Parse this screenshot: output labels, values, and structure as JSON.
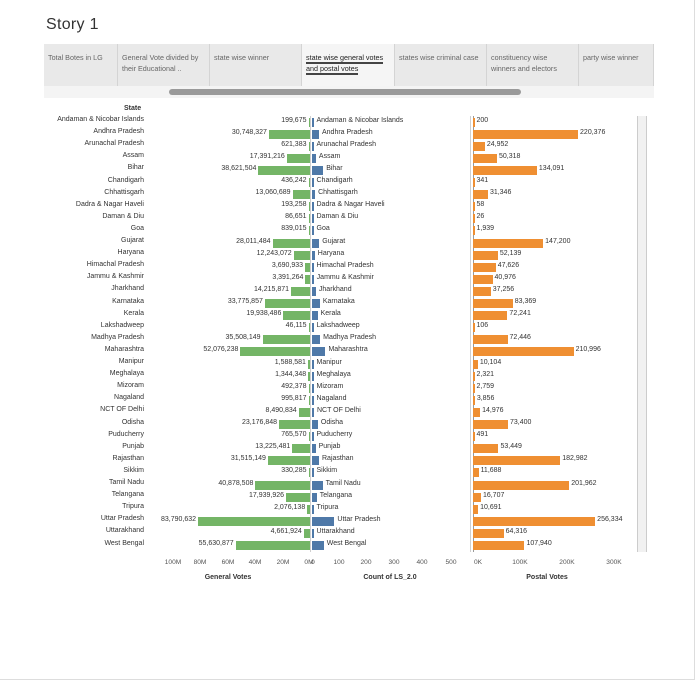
{
  "story_title": "Story 1",
  "tabs": [
    {
      "label": "Total Botes in LG",
      "active": false
    },
    {
      "label": "General Vote divided by their Educational ..",
      "active": false
    },
    {
      "label": "state wise winner",
      "active": false
    },
    {
      "label": "state wise general votes and postal votes",
      "active": true
    },
    {
      "label": "states wise criminal case",
      "active": false
    },
    {
      "label": "constituency wise winners and electors",
      "active": false
    },
    {
      "label": "party wise winner",
      "active": false
    }
  ],
  "state_header": "State",
  "colors": {
    "general": "#74b566",
    "count": "#4f79a8",
    "postal": "#ef8f32"
  },
  "chart_data": {
    "type": "bar",
    "categories": [
      "Andaman & Nicobar Islands",
      "Andhra Pradesh",
      "Arunachal Pradesh",
      "Assam",
      "Bihar",
      "Chandigarh",
      "Chhattisgarh",
      "Dadra & Nagar Haveli",
      "Daman & Diu",
      "Goa",
      "Gujarat",
      "Haryana",
      "Himachal Pradesh",
      "Jammu & Kashmir",
      "Jharkhand",
      "Karnataka",
      "Kerala",
      "Lakshadweep",
      "Madhya Pradesh",
      "Maharashtra",
      "Manipur",
      "Meghalaya",
      "Mizoram",
      "Nagaland",
      "NCT OF Delhi",
      "Odisha",
      "Puducherry",
      "Punjab",
      "Rajasthan",
      "Sikkim",
      "Tamil Nadu",
      "Telangana",
      "Tripura",
      "Uttar Pradesh",
      "Uttarakhand",
      "West Bengal"
    ],
    "series": [
      {
        "name": "General Votes",
        "values": [
          199675,
          30748327,
          621383,
          17391216,
          38621504,
          436242,
          13060689,
          193258,
          86651,
          839015,
          28011484,
          12243072,
          3690933,
          3391264,
          14215871,
          33775857,
          19938486,
          46115,
          35508149,
          52076238,
          1588581,
          1344348,
          492378,
          995817,
          8490834,
          23176848,
          765570,
          13225481,
          31515149,
          330285,
          40878508,
          17939926,
          2076138,
          83790632,
          4661924,
          55630877
        ],
        "labels": [
          "199,675",
          "30,748,327",
          "621,383",
          "17,391,216",
          "38,621,504",
          "436,242",
          "13,060,689",
          "193,258",
          "86,651",
          "839,015",
          "28,011,484",
          "12,243,072",
          "3,690,933",
          "3,391,264",
          "14,215,871",
          "33,775,857",
          "19,938,486",
          "46,115",
          "35,508,149",
          "52,076,238",
          "1,588,581",
          "1,344,348",
          "492,378",
          "995,817",
          "8,490,834",
          "23,176,848",
          "765,570",
          "13,225,481",
          "31,515,149",
          "330,285",
          "40,878,508",
          "17,939,926",
          "2,076,138",
          "83,790,632",
          "4,661,924",
          "55,630,877"
        ],
        "axis_ticks": [
          "100M",
          "80M",
          "60M",
          "40M",
          "20M",
          "0M"
        ],
        "axis_title": "General Votes",
        "max": 110000000
      },
      {
        "name": "Count of LS_2.0",
        "values": [
          2,
          25,
          2,
          14,
          40,
          1,
          11,
          1,
          1,
          2,
          26,
          10,
          4,
          6,
          14,
          28,
          20,
          1,
          29,
          48,
          2,
          2,
          1,
          1,
          7,
          21,
          1,
          13,
          25,
          1,
          38,
          17,
          2,
          80,
          5,
          42
        ],
        "axis_ticks": [
          "0",
          "100",
          "200",
          "300",
          "400",
          "500"
        ],
        "axis_title": "Count of LS_2.0",
        "max": 500
      },
      {
        "name": "Postal Votes",
        "values": [
          200,
          220376,
          24952,
          50318,
          134091,
          341,
          31346,
          58,
          26,
          1939,
          147200,
          52139,
          47626,
          40976,
          37256,
          83369,
          72241,
          106,
          72446,
          210996,
          10104,
          2321,
          2759,
          3856,
          14976,
          73400,
          491,
          53449,
          182982,
          11688,
          201962,
          16707,
          10691,
          256334,
          64316,
          107940
        ],
        "labels": [
          "200",
          "220,376",
          "24,952",
          "50,318",
          "134,091",
          "341",
          "31,346",
          "58",
          "26",
          "1,939",
          "147,200",
          "52,139",
          "47,626",
          "40,976",
          "37,256",
          "83,369",
          "72,241",
          "106",
          "72,446",
          "210,996",
          "10,104",
          "2,321",
          "2,759",
          "3,856",
          "14,976",
          "73,400",
          "491",
          "53,449",
          "182,982",
          "11,688",
          "201,962",
          "16,707",
          "10,691",
          "256,334",
          "64,316",
          "107,940"
        ],
        "axis_ticks": [
          "0K",
          "100K",
          "200K",
          "300K"
        ],
        "axis_title": "Postal Votes",
        "max": 300000
      }
    ]
  }
}
